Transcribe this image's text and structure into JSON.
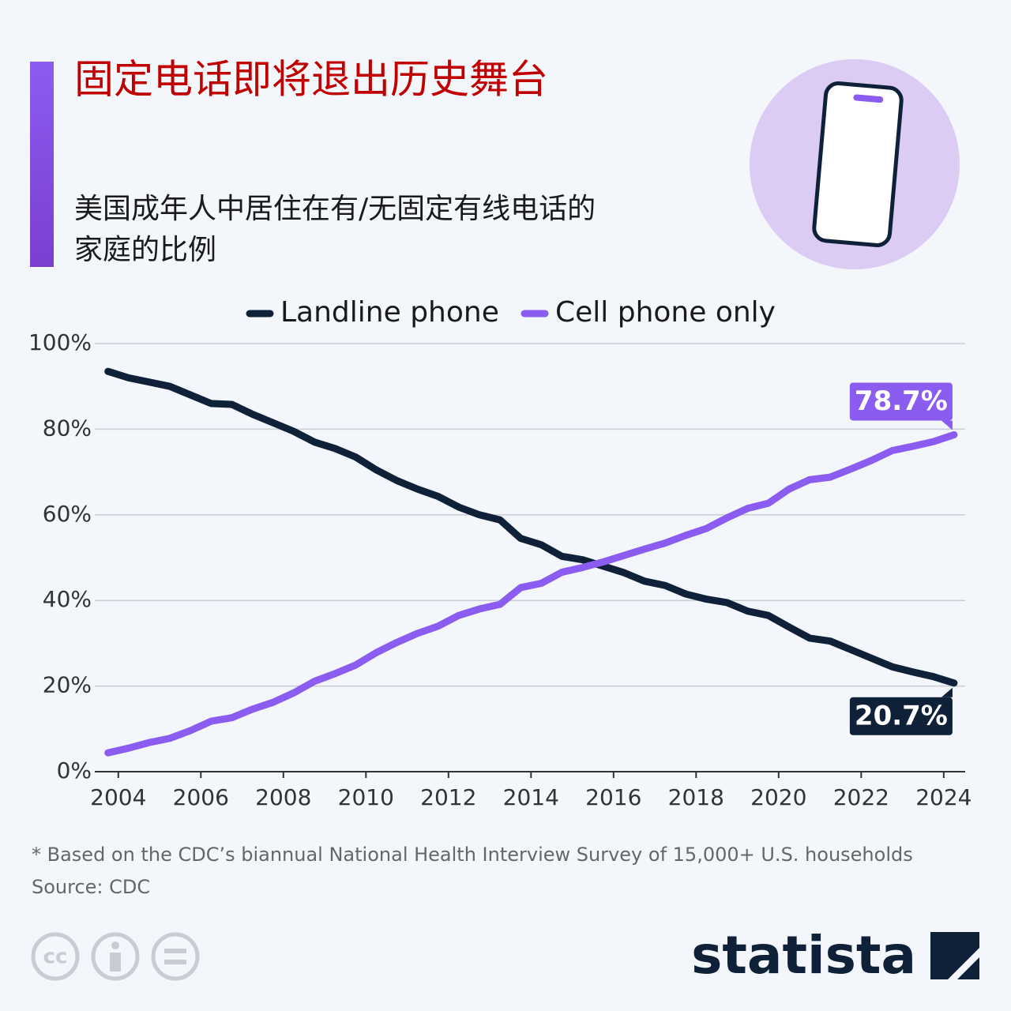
{
  "chart_data": {
    "type": "line",
    "title": "固定电话即将退出历史舞台",
    "subtitle": [
      "美国成年人中居住在有/无固定有线电话的",
      "家庭的比例"
    ],
    "x": [
      2003.75,
      2004.25,
      2004.75,
      2005.25,
      2005.75,
      2006.25,
      2006.75,
      2007.25,
      2007.75,
      2008.25,
      2008.75,
      2009.25,
      2009.75,
      2010.25,
      2010.75,
      2011.25,
      2011.75,
      2012.25,
      2012.75,
      2013.25,
      2013.75,
      2014.25,
      2014.75,
      2015.25,
      2015.75,
      2016.25,
      2016.75,
      2017.25,
      2017.75,
      2018.25,
      2018.75,
      2019.25,
      2019.75,
      2020.25,
      2020.75,
      2021.25,
      2021.75,
      2022.25,
      2022.75,
      2023.25,
      2023.75,
      2024.25
    ],
    "series": [
      {
        "name": "Landline phone",
        "color": "#0f2139",
        "values": [
          93.5,
          92,
          91,
          90,
          88,
          86,
          85.8,
          83.5,
          81.5,
          79.5,
          77,
          75.5,
          73.5,
          70.5,
          68,
          66,
          64.3,
          61.8,
          60,
          58.8,
          54.5,
          53,
          50.3,
          49.5,
          48,
          46.5,
          44.5,
          43.5,
          41.5,
          40.3,
          39.5,
          37.5,
          36.5,
          33.8,
          31.2,
          30.5,
          28.5,
          26.5,
          24.5,
          23.3,
          22.2,
          20.7
        ],
        "value_labels": [
          null,
          null,
          null,
          null,
          null,
          null,
          null,
          null,
          null,
          null,
          null,
          null,
          null,
          null,
          null,
          null,
          null,
          null,
          null,
          null,
          null,
          null,
          null,
          null,
          null,
          null,
          null,
          null,
          null,
          null,
          null,
          null,
          null,
          null,
          null,
          null,
          null,
          null,
          null,
          null,
          null,
          "20.7%"
        ]
      },
      {
        "name": "Cell phone only",
        "color": "#8b5cf0",
        "values": [
          4.4,
          5.5,
          6.8,
          7.8,
          9.6,
          11.8,
          12.6,
          14.6,
          16.2,
          18.4,
          21.1,
          22.9,
          24.9,
          27.8,
          30.2,
          32.3,
          34,
          36.5,
          38,
          39.1,
          43,
          44,
          46.6,
          47.7,
          49,
          50.5,
          52,
          53.4,
          55.2,
          56.8,
          59.3,
          61.5,
          62.7,
          66,
          68.2,
          68.8,
          70.7,
          72.7,
          75,
          76,
          77.1,
          78.7
        ],
        "value_labels": [
          null,
          null,
          null,
          null,
          null,
          null,
          null,
          null,
          null,
          null,
          null,
          null,
          null,
          null,
          null,
          null,
          null,
          null,
          null,
          null,
          null,
          null,
          null,
          null,
          null,
          null,
          null,
          null,
          null,
          null,
          null,
          null,
          null,
          null,
          null,
          null,
          null,
          null,
          null,
          null,
          null,
          "78.7%"
        ]
      }
    ],
    "xlim": [
      2003.43,
      2024.52
    ],
    "xticks": [
      2004,
      2006,
      2008,
      2010,
      2012,
      2014,
      2016,
      2018,
      2020,
      2022,
      2024
    ],
    "ylim": [
      0,
      100
    ],
    "yticks": [
      {
        "value": 0,
        "label": "0%"
      },
      {
        "value": 20,
        "label": "20%"
      },
      {
        "value": 40,
        "label": "40%"
      },
      {
        "value": 60,
        "label": "60%"
      },
      {
        "value": 80,
        "label": "80%"
      },
      {
        "value": 100,
        "label": "100%"
      }
    ],
    "grid": true,
    "legend": "top",
    "footnote": "* Based on the CDC’s biannual National Health Interview Survey of 15,000+ U.S. households",
    "source": "Source: CDC",
    "brand": "statista",
    "license_icon": "cc"
  }
}
